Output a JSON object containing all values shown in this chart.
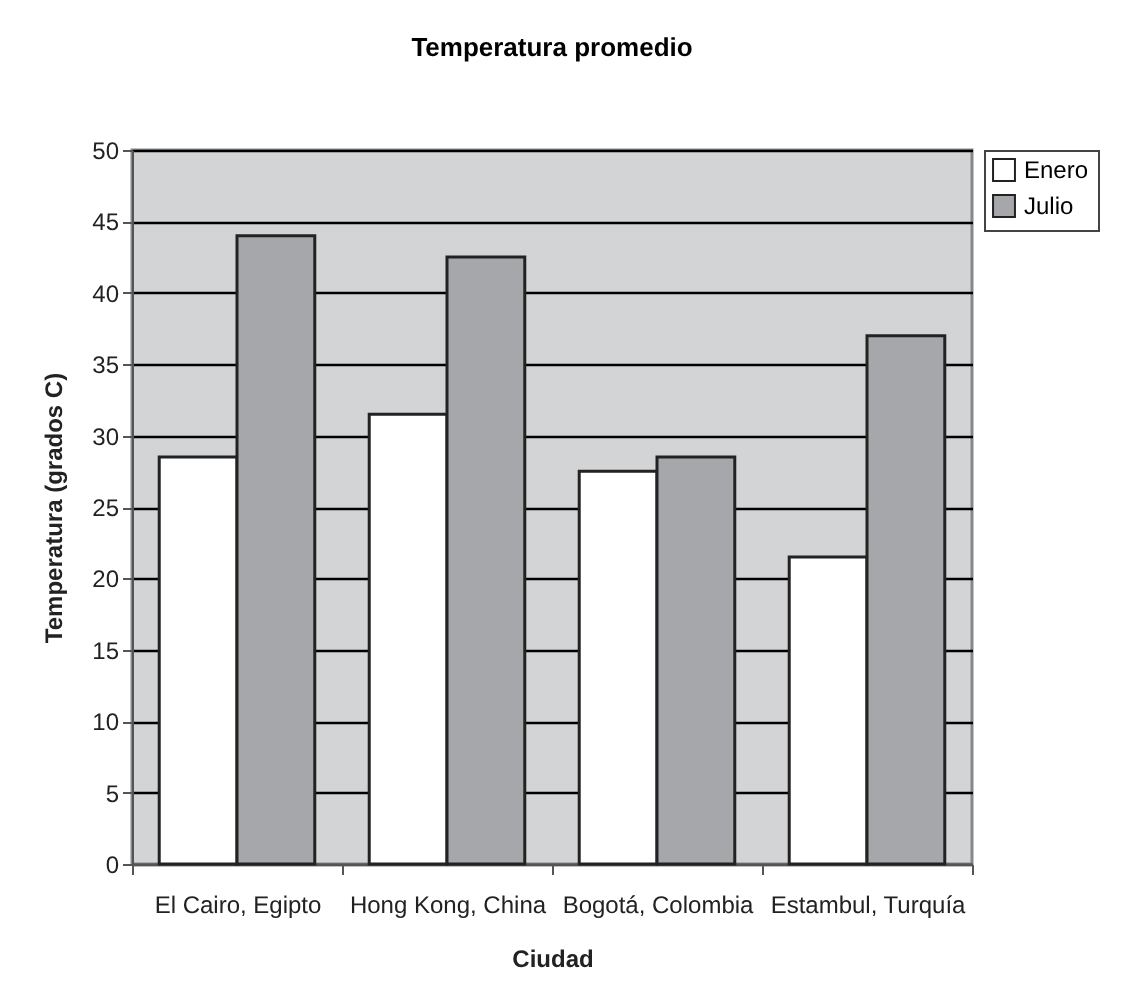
{
  "chart_data": {
    "type": "bar",
    "title": "Temperatura promedio",
    "xlabel": "Ciudad",
    "ylabel": "Temperatura (grados C)",
    "categories": [
      "El Cairo, Egipto",
      "Hong Kong, China",
      "Bogotá, Colombia",
      "Estambul, Turquía"
    ],
    "series": [
      {
        "name": "Enero",
        "color": "#ffffff",
        "values": [
          28.5,
          31.5,
          27.5,
          21.5
        ]
      },
      {
        "name": "Julio",
        "color": "#a6a7ab",
        "values": [
          44,
          42.5,
          28.5,
          37
        ]
      }
    ],
    "ylim": [
      0,
      50
    ],
    "yticks": [
      0,
      5,
      10,
      15,
      20,
      25,
      30,
      35,
      40,
      45,
      50
    ],
    "grid": "y",
    "legend": "right"
  }
}
